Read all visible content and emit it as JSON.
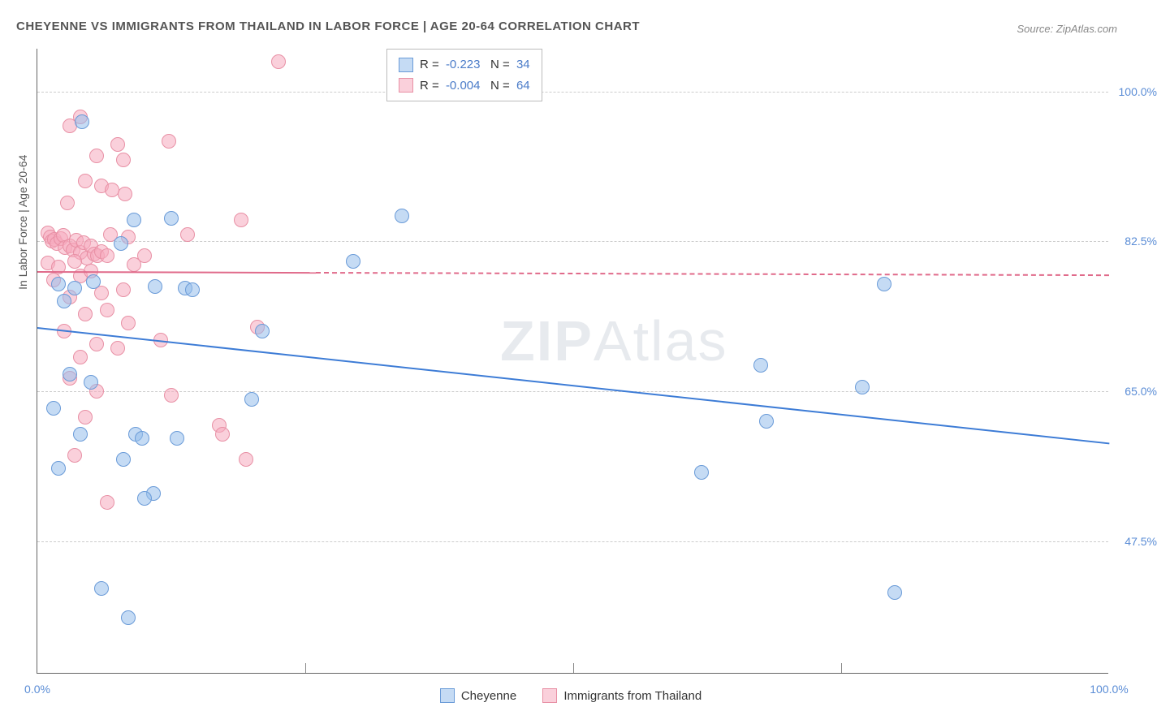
{
  "title": "CHEYENNE VS IMMIGRANTS FROM THAILAND IN LABOR FORCE | AGE 20-64 CORRELATION CHART",
  "source_label": "Source: ZipAtlas.com",
  "y_axis_title": "In Labor Force | Age 20-64",
  "watermark": {
    "part1": "ZIP",
    "part2": "Atlas"
  },
  "chart": {
    "type": "scatter",
    "background_color": "#ffffff",
    "grid_color": "#cccccc",
    "xlim": [
      0,
      100
    ],
    "ylim": [
      32,
      105
    ],
    "y_ticks": [
      {
        "value": 100.0,
        "label": "100.0%"
      },
      {
        "value": 82.5,
        "label": "82.5%"
      },
      {
        "value": 65.0,
        "label": "65.0%"
      },
      {
        "value": 47.5,
        "label": "47.5%"
      }
    ],
    "x_ticks_minor": [
      25,
      50,
      75
    ],
    "x_tick_labels": [
      {
        "value": 0,
        "label": "0.0%"
      },
      {
        "value": 100,
        "label": "100.0%"
      }
    ],
    "series": [
      {
        "name": "Cheyenne",
        "fill": "rgba(150,190,235,0.55)",
        "stroke": "#6a9bd8",
        "marker_radius": 9,
        "r_value": "-0.223",
        "n_value": "34",
        "trend": {
          "x1": 0,
          "y1": 72.5,
          "x2": 100,
          "y2": 59.0,
          "solid_until_x": 100,
          "color": "#3d7cd6"
        },
        "points": [
          [
            4.2,
            96.5
          ],
          [
            9.0,
            85.0
          ],
          [
            12.5,
            85.2
          ],
          [
            7.8,
            82.2
          ],
          [
            2.0,
            77.5
          ],
          [
            3.5,
            77.0
          ],
          [
            2.5,
            75.5
          ],
          [
            5.2,
            77.8
          ],
          [
            11.0,
            77.2
          ],
          [
            13.8,
            77.0
          ],
          [
            14.5,
            76.8
          ],
          [
            3.0,
            67.0
          ],
          [
            5.0,
            66.0
          ],
          [
            1.5,
            63.0
          ],
          [
            4.0,
            60.0
          ],
          [
            9.2,
            60.0
          ],
          [
            9.8,
            59.5
          ],
          [
            13.0,
            59.5
          ],
          [
            2.0,
            56.0
          ],
          [
            8.0,
            57.0
          ],
          [
            10.8,
            53.0
          ],
          [
            10.0,
            52.5
          ],
          [
            6.0,
            42.0
          ],
          [
            8.5,
            38.5
          ],
          [
            21.0,
            72.0
          ],
          [
            29.5,
            80.2
          ],
          [
            34.0,
            85.5
          ],
          [
            20.0,
            64.0
          ],
          [
            62.0,
            55.5
          ],
          [
            67.5,
            68.0
          ],
          [
            68.0,
            61.5
          ],
          [
            77.0,
            65.5
          ],
          [
            79.0,
            77.5
          ],
          [
            80.0,
            41.5
          ]
        ]
      },
      {
        "name": "Immigrants from Thailand",
        "fill": "rgba(245,170,190,0.55)",
        "stroke": "#e890a5",
        "marker_radius": 9,
        "r_value": "-0.004",
        "n_value": "64",
        "trend": {
          "x1": 0,
          "y1": 79.0,
          "x2": 100,
          "y2": 78.6,
          "solid_until_x": 26,
          "color": "#e06a8a"
        },
        "points": [
          [
            22.5,
            103.5
          ],
          [
            4.0,
            97.0
          ],
          [
            3.0,
            96.0
          ],
          [
            7.5,
            93.8
          ],
          [
            12.3,
            94.2
          ],
          [
            5.5,
            92.5
          ],
          [
            8.0,
            92.0
          ],
          [
            4.5,
            89.5
          ],
          [
            6.0,
            89.0
          ],
          [
            7.0,
            88.5
          ],
          [
            8.2,
            88.0
          ],
          [
            2.8,
            87.0
          ],
          [
            1.0,
            83.5
          ],
          [
            1.2,
            83.0
          ],
          [
            1.4,
            82.5
          ],
          [
            1.6,
            82.7
          ],
          [
            1.8,
            82.2
          ],
          [
            2.2,
            82.8
          ],
          [
            2.4,
            83.2
          ],
          [
            2.6,
            81.8
          ],
          [
            3.0,
            82.0
          ],
          [
            3.3,
            81.5
          ],
          [
            3.6,
            82.6
          ],
          [
            4.0,
            81.2
          ],
          [
            4.3,
            82.3
          ],
          [
            4.6,
            80.5
          ],
          [
            5.0,
            82.0
          ],
          [
            5.3,
            81.0
          ],
          [
            5.6,
            80.8
          ],
          [
            6.0,
            81.3
          ],
          [
            6.8,
            83.3
          ],
          [
            8.5,
            83.0
          ],
          [
            14.0,
            83.3
          ],
          [
            6.5,
            80.8
          ],
          [
            10.0,
            80.8
          ],
          [
            1.5,
            78.0
          ],
          [
            4.0,
            78.5
          ],
          [
            5.0,
            79.0
          ],
          [
            3.0,
            76.0
          ],
          [
            6.0,
            76.5
          ],
          [
            8.0,
            76.8
          ],
          [
            4.5,
            74.0
          ],
          [
            6.5,
            74.5
          ],
          [
            8.5,
            73.0
          ],
          [
            2.5,
            72.0
          ],
          [
            5.5,
            70.5
          ],
          [
            7.5,
            70.0
          ],
          [
            4.0,
            69.0
          ],
          [
            1.0,
            80.0
          ],
          [
            2.0,
            79.5
          ],
          [
            3.5,
            80.2
          ],
          [
            9.0,
            79.8
          ],
          [
            3.0,
            66.5
          ],
          [
            5.5,
            65.0
          ],
          [
            4.5,
            62.0
          ],
          [
            12.5,
            64.5
          ],
          [
            17.0,
            61.0
          ],
          [
            17.3,
            60.0
          ],
          [
            3.5,
            57.5
          ],
          [
            6.5,
            52.0
          ],
          [
            19.0,
            85.0
          ],
          [
            20.5,
            72.5
          ],
          [
            19.5,
            57.0
          ],
          [
            11.5,
            71.0
          ]
        ]
      }
    ]
  },
  "legend_top": {
    "r_label": "R =",
    "n_label": "N ="
  },
  "legend_bottom": [
    {
      "label": "Cheyenne",
      "fill": "rgba(150,190,235,0.55)",
      "stroke": "#6a9bd8"
    },
    {
      "label": "Immigrants from Thailand",
      "fill": "rgba(245,170,190,0.55)",
      "stroke": "#e890a5"
    }
  ]
}
